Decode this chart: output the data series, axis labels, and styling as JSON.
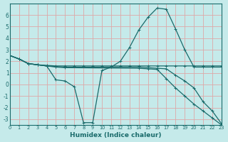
{
  "background_color": "#c5eaea",
  "grid_color": "#dda8a8",
  "line_color": "#1a6b6b",
  "xlabel": "Humidex (Indice chaleur)",
  "xlim": [
    0,
    23
  ],
  "ylim": [
    -3.5,
    7.0
  ],
  "yticks": [
    -3,
    -2,
    -1,
    0,
    1,
    2,
    3,
    4,
    5,
    6
  ],
  "xticks": [
    0,
    1,
    2,
    3,
    4,
    5,
    6,
    7,
    8,
    9,
    10,
    11,
    12,
    13,
    14,
    15,
    16,
    17,
    18,
    19,
    20,
    21,
    22,
    23
  ],
  "lines": [
    {
      "x": [
        0,
        1,
        2,
        3,
        4,
        5,
        6,
        7,
        8,
        9,
        10,
        11,
        12,
        13,
        14,
        15,
        16,
        17,
        18,
        19,
        20,
        21,
        22,
        23
      ],
      "y": [
        2.5,
        2.2,
        1.8,
        1.7,
        1.6,
        0.4,
        0.3,
        -0.2,
        -3.3,
        -3.3,
        1.2,
        1.5,
        2.0,
        3.2,
        4.7,
        5.8,
        6.6,
        6.5,
        4.8,
        3.0,
        1.5,
        1.5,
        1.5,
        1.5
      ]
    },
    {
      "x": [
        0,
        1,
        2,
        3,
        4,
        5,
        6,
        7,
        8,
        9,
        10,
        11,
        12,
        13,
        14,
        15,
        16,
        17,
        18,
        19,
        20,
        21,
        22,
        23
      ],
      "y": [
        2.5,
        2.2,
        1.8,
        1.7,
        1.65,
        1.6,
        1.6,
        1.6,
        1.6,
        1.6,
        1.6,
        1.6,
        1.6,
        1.6,
        1.6,
        1.6,
        1.6,
        1.6,
        1.6,
        1.6,
        1.6,
        1.6,
        1.6,
        1.6
      ]
    },
    {
      "x": [
        0,
        1,
        2,
        3,
        4,
        5,
        6,
        14,
        15,
        16,
        17,
        18,
        19,
        20,
        21,
        22,
        23
      ],
      "y": [
        2.5,
        2.2,
        1.8,
        1.7,
        1.6,
        1.55,
        1.5,
        1.5,
        1.45,
        1.4,
        1.35,
        0.8,
        0.3,
        -0.3,
        -1.5,
        -2.3,
        -3.4
      ]
    },
    {
      "x": [
        0,
        1,
        2,
        3,
        4,
        5,
        6,
        14,
        15,
        16,
        17,
        18,
        19,
        20,
        21,
        22,
        23
      ],
      "y": [
        2.5,
        2.2,
        1.8,
        1.7,
        1.6,
        1.5,
        1.45,
        1.4,
        1.35,
        1.3,
        0.5,
        -0.3,
        -1.0,
        -1.7,
        -2.3,
        -2.9,
        -3.5
      ]
    }
  ]
}
